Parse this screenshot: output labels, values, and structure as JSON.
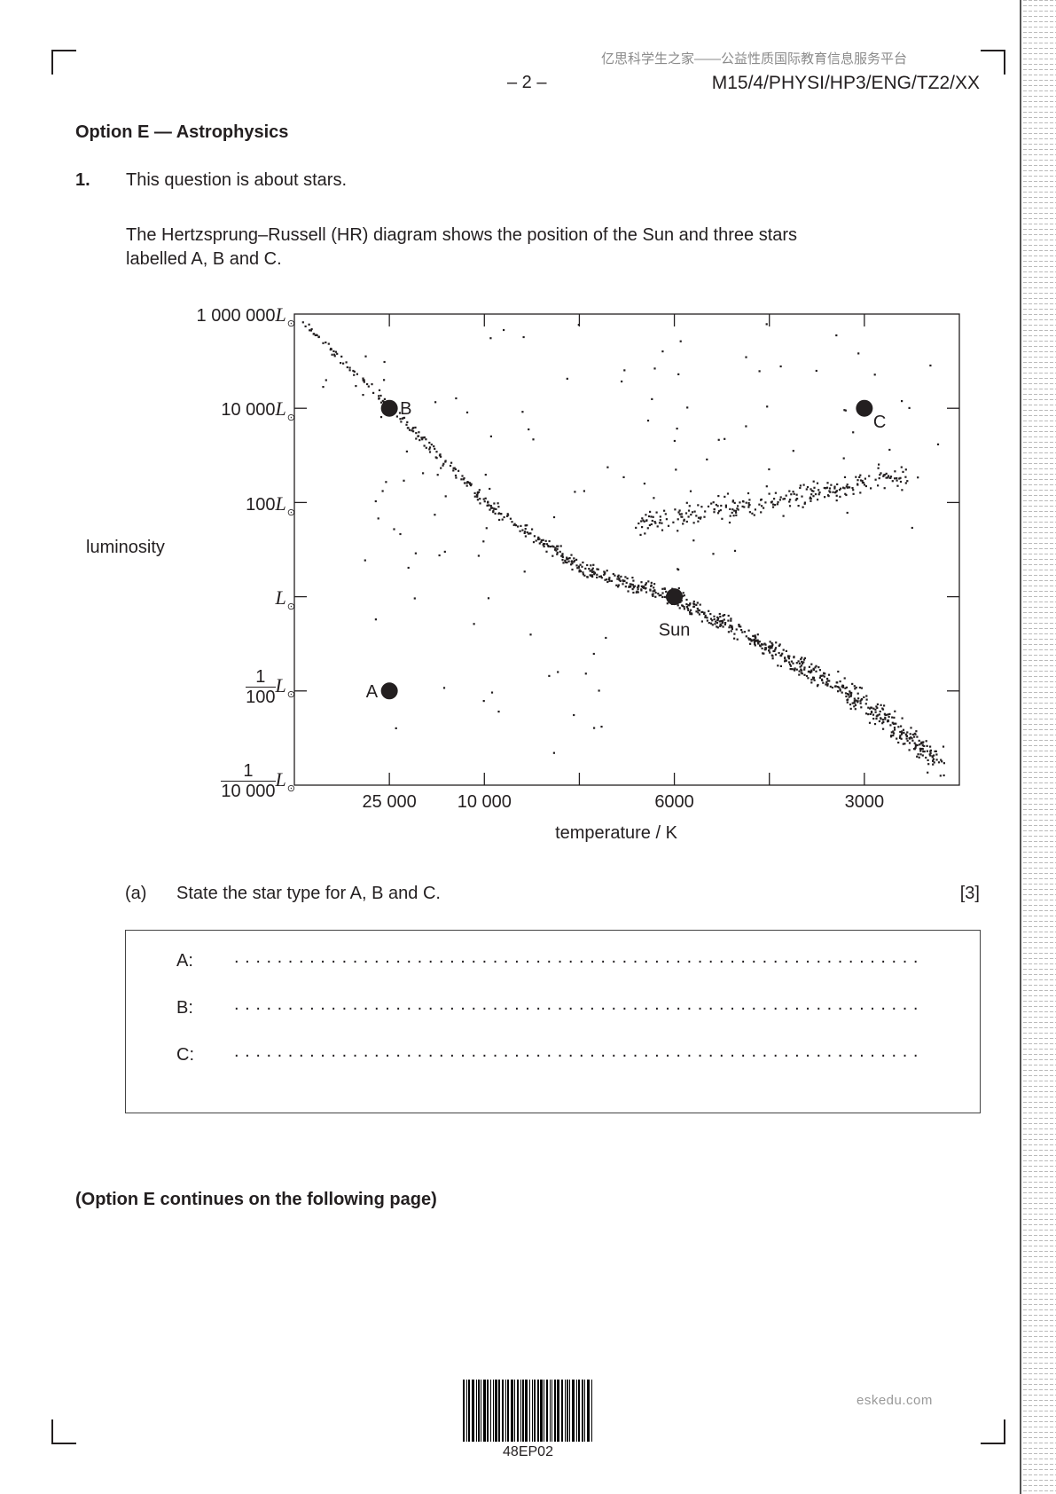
{
  "header": {
    "watermark_cjk": "亿思科学生之家——公益性质国际教育信息服务平台",
    "page_number": "– 2 –",
    "paper_code": "M15/4/PHYSI/HP3/ENG/TZ2/XX"
  },
  "section_title": "Option E — Astrophysics",
  "question": {
    "number": "1.",
    "intro": "This question is about stars.",
    "body_line1": "The Hertzsprung–Russell (HR) diagram shows the position of the Sun and three stars",
    "body_line2": "labelled A, B and C."
  },
  "chart_data": {
    "type": "scatter",
    "ylabel": "luminosity",
    "xlabel": "temperature / K",
    "y_scale": "log",
    "x_axis": "temperature decreasing to the right",
    "y_ticks": [
      {
        "value": 1000000,
        "label": "1 000 000",
        "unit": "L",
        "unit_sub": "⊙"
      },
      {
        "value": 10000,
        "label": "10 000",
        "unit": "L",
        "unit_sub": "⊙"
      },
      {
        "value": 100,
        "label": "100",
        "unit": "L",
        "unit_sub": "⊙"
      },
      {
        "value": 1,
        "label": "",
        "unit": "L",
        "unit_sub": "⊙"
      },
      {
        "value": 0.01,
        "num": "1",
        "den": "100",
        "unit": "L",
        "unit_sub": "⊙"
      },
      {
        "value": 0.0001,
        "num": "1",
        "den": "10 000",
        "unit": "L",
        "unit_sub": "⊙"
      }
    ],
    "x_ticks": [
      "",
      "25 000",
      "10 000",
      "",
      "6000",
      "",
      "3000",
      ""
    ],
    "labelled_points": [
      {
        "label": "B",
        "temperature": 25000,
        "luminosity": 10000
      },
      {
        "label": "C",
        "temperature": 3000,
        "luminosity": 10000
      },
      {
        "label": "Sun",
        "temperature": 6000,
        "luminosity": 1
      },
      {
        "label": "A",
        "temperature": 25000,
        "luminosity": 0.01
      }
    ],
    "grid": false
  },
  "part_a": {
    "label": "(a)",
    "text": "State the star type for A, B and C.",
    "marks": "[3]",
    "answers": [
      {
        "label": "A:",
        "dots": "................................................................"
      },
      {
        "label": "B:",
        "dots": "................................................................"
      },
      {
        "label": "C:",
        "dots": "................................................................"
      }
    ]
  },
  "continues": "(Option E continues on the following page)",
  "barcode_text": "48EP02",
  "footer_watermark": "eskedu.com"
}
